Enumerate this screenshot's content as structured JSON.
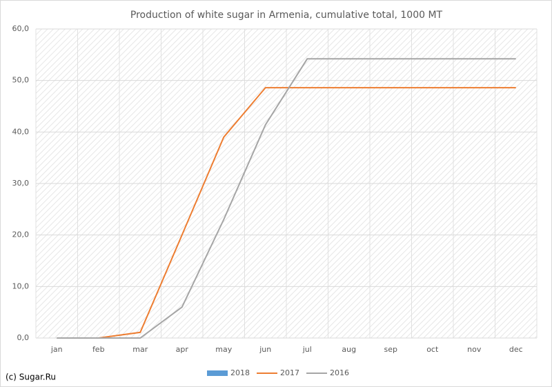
{
  "chart_data": {
    "type": "line",
    "title": "Production of white sugar in Armenia, cumulative total, 1000 MT",
    "categories": [
      "jan",
      "feb",
      "mar",
      "apr",
      "may",
      "jun",
      "jul",
      "aug",
      "sep",
      "oct",
      "nov",
      "dec"
    ],
    "series": [
      {
        "name": "2018",
        "color": "#5b9bd5",
        "values": [
          null,
          null,
          null,
          null,
          null,
          null,
          null,
          null,
          null,
          null,
          null,
          null
        ]
      },
      {
        "name": "2017",
        "color": "#ed7d31",
        "values": [
          null,
          0,
          1.1,
          20,
          39,
          48.6,
          48.6,
          48.6,
          48.6,
          48.6,
          48.6,
          48.6
        ]
      },
      {
        "name": "2016",
        "color": "#a5a5a5",
        "values": [
          0,
          0,
          0,
          6,
          23,
          41.4,
          54.2,
          54.2,
          54.2,
          54.2,
          54.2,
          54.2
        ]
      }
    ],
    "ylim": [
      0,
      60
    ],
    "yticks": [
      {
        "value": 0,
        "label": "0,0"
      },
      {
        "value": 10,
        "label": "10,0"
      },
      {
        "value": 20,
        "label": "20,0"
      },
      {
        "value": 30,
        "label": "30,0"
      },
      {
        "value": 40,
        "label": "40,0"
      },
      {
        "value": 50,
        "label": "50,0"
      },
      {
        "value": 60,
        "label": "60,0"
      }
    ],
    "grid": true,
    "legend": "bottom",
    "watermark": "(c) Sugar.Ru"
  }
}
